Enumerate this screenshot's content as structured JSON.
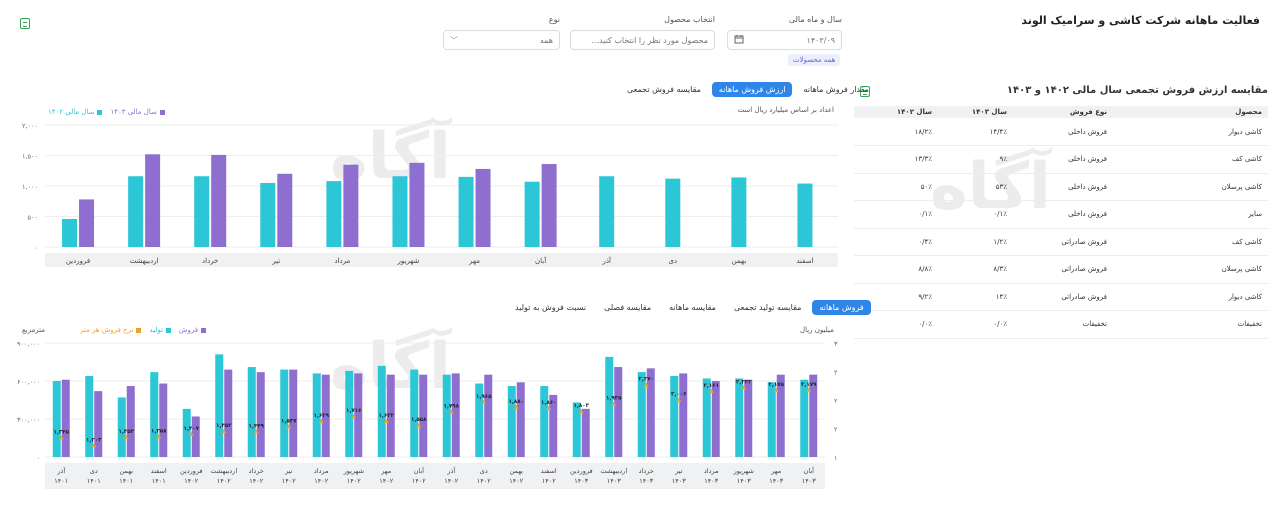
{
  "header": {
    "title": "فعالیت ماهانه شرکت کاشی و سرامیک الوند"
  },
  "filters": {
    "year_month_label": "سال و ماه مالی",
    "year_month_value": "۱۴۰۳/۰۹",
    "product_label": "انتخاب محصول",
    "product_placeholder": "محصول مورد نظر را انتخاب کنید...",
    "type_label": "نوع",
    "type_value": "همه",
    "chip": "همه محصولات"
  },
  "watermark": "آگاه",
  "table_panel": {
    "title": "مقایسه ارزش فروش تجمعی سال مالی ۱۴۰۲ و ۱۴۰۳",
    "columns": [
      "محصول",
      "نوع فروش",
      "سال ۱۴۰۳",
      "سال ۱۴۰۲"
    ],
    "rows": [
      [
        "کاشی دیوار",
        "فروش داخلی",
        "۱۴/۴٪",
        "۱۸/۲٪"
      ],
      [
        "کاشی کف",
        "فروش داخلی",
        "۹٪",
        "۱۳/۳٪"
      ],
      [
        "کاشی پرسلان",
        "فروش داخلی",
        "۵۳٪",
        "۵۰٪"
      ],
      [
        "سایر",
        "فروش داخلی",
        "۰/۱٪",
        "۰/۱٪"
      ],
      [
        "کاشی کف",
        "فروش صادراتی",
        "۱/۲٪",
        "۰/۴٪"
      ],
      [
        "کاشی پرسلان",
        "فروش صادراتی",
        "۸/۳٪",
        "۸/۸٪"
      ],
      [
        "کاشی دیوار",
        "فروش صادراتی",
        "۱۴٪",
        "۹/۲٪"
      ],
      [
        "تخفیفات",
        "تخفیفات",
        "۰/۰٪",
        "۰/۰٪"
      ]
    ]
  },
  "top_chart": {
    "tabs": [
      "مقدار فروش ماهانه",
      "ارزش فروش ماهانه",
      "مقایسه فروش تجمعی"
    ],
    "active_tab": 1,
    "subtitle": "اعداد بر اساس میلیارد ریال است",
    "legend": [
      "سال مالی ۱۴۰۳",
      "سال مالی ۱۴۰۲"
    ]
  },
  "bottom_chart": {
    "tabs": [
      "فروش ماهانه",
      "مقایسه تولید تجمعی",
      "مقایسه ماهانه",
      "مقایسه فصلی",
      "نسبت فروش به تولید"
    ],
    "active_tab": 0,
    "left_axis_title": "مترمربع",
    "right_axis_title": "میلیون ریال",
    "legend": [
      "فروش",
      "تولید",
      "نرخ فروش هر متر"
    ]
  },
  "colors": {
    "teal": "#2cc7d6",
    "purple": "#8e6fd0",
    "orange": "#f0a12c",
    "accent": "#2f86e8"
  },
  "chart_data": [
    {
      "type": "bar",
      "categories": [
        "فروردین",
        "اردیبهشت",
        "خرداد",
        "تیر",
        "مرداد",
        "شهریور",
        "مهر",
        "آبان",
        "آذر",
        "دی",
        "بهمن",
        "اسفند"
      ],
      "series": [
        {
          "name": "سال مالی ۱۴۰۲",
          "values": [
            460,
            1160,
            1160,
            1050,
            1080,
            1160,
            1150,
            1070,
            1160,
            1120,
            1140,
            1040
          ]
        },
        {
          "name": "سال مالی ۱۴۰۳",
          "values": [
            780,
            1520,
            1510,
            1200,
            1350,
            1380,
            1280,
            1360,
            null,
            null,
            null,
            null
          ]
        }
      ],
      "yticks": [
        "۰",
        "۵۰۰",
        "۱,۰۰۰",
        "۱,۵۰۰",
        "۲,۰۰۰"
      ],
      "ylim": [
        0,
        2000
      ]
    },
    {
      "type": "bar",
      "categories": [
        "آذر ۱۴۰۱",
        "دی ۱۴۰۱",
        "بهمن ۱۴۰۱",
        "اسفند ۱۴۰۱",
        "فروردین ۱۴۰۲",
        "اردیبهشت ۱۴۰۲",
        "خرداد ۱۴۰۲",
        "تیر ۱۴۰۲",
        "مرداد ۱۴۰۲",
        "شهریور ۱۴۰۲",
        "مهر ۱۴۰۲",
        "آبان ۱۴۰۲",
        "آذر ۱۴۰۲",
        "دی ۱۴۰۲",
        "بهمن ۱۴۰۲",
        "اسفند ۱۴۰۲",
        "فروردین ۱۴۰۳",
        "اردیبهشت ۱۴۰۳",
        "خرداد ۱۴۰۳",
        "تیر ۱۴۰۳",
        "مرداد ۱۴۰۳",
        "شهریور ۱۴۰۳",
        "مهر ۱۴۰۳",
        "آبان ۱۴۰۳"
      ],
      "series": [
        {
          "name": "فروش",
          "values": [
            610000,
            520000,
            560000,
            580000,
            320000,
            690000,
            670000,
            690000,
            650000,
            660000,
            650000,
            650000,
            660000,
            650000,
            590000,
            490000,
            380000,
            710000,
            700000,
            660000,
            600000,
            610000,
            650000,
            650000
          ]
        },
        {
          "name": "تولید",
          "values": [
            600000,
            640000,
            470000,
            670000,
            380000,
            810000,
            710000,
            690000,
            660000,
            680000,
            720000,
            690000,
            650000,
            580000,
            560000,
            560000,
            430000,
            790000,
            670000,
            640000,
            620000,
            620000,
            590000,
            610000
          ]
        }
      ],
      "rate_labels": [
        "۱,۳۴۵",
        "۱,۲۰۳",
        "۱,۳۵۳",
        "۱,۳۵۸",
        "۱,۴۰۷",
        "۱,۴۵۳",
        "۱,۴۴۹",
        "۱,۵۳۷",
        "۱,۶۲۹",
        "۱,۷۱۶",
        "۱,۶۳۲",
        "۱,۵۵۸",
        "۱,۷۹۸",
        "۱,۹۶۵",
        "۱,۸۸۰",
        "۱,۸۶۰",
        "۱,۸۰۳",
        "۱,۹۳۵",
        "۲,۲۷۰",
        "۲,۰۰۶",
        "۲,۱۶۱",
        "۲,۲۲۲",
        "۲,۱۷۵",
        "۲,۱۷۹"
      ],
      "rate_values": [
        1.345,
        1.203,
        1.353,
        1.358,
        1.407,
        1.453,
        1.449,
        1.537,
        1.629,
        1.716,
        1.632,
        1.558,
        1.798,
        1.965,
        1.88,
        1.86,
        1.803,
        1.935,
        2.27,
        2.006,
        2.161,
        2.222,
        2.175,
        2.179
      ],
      "left_ticks": [
        "۰",
        "۳۰۰,۰۰۰",
        "۶۰۰,۰۰۰",
        "۹۰۰,۰۰۰"
      ],
      "left_lim": [
        0,
        900000
      ],
      "right_ticks": [
        "۱",
        "۲",
        "۲",
        "۲",
        "۳"
      ]
    }
  ]
}
